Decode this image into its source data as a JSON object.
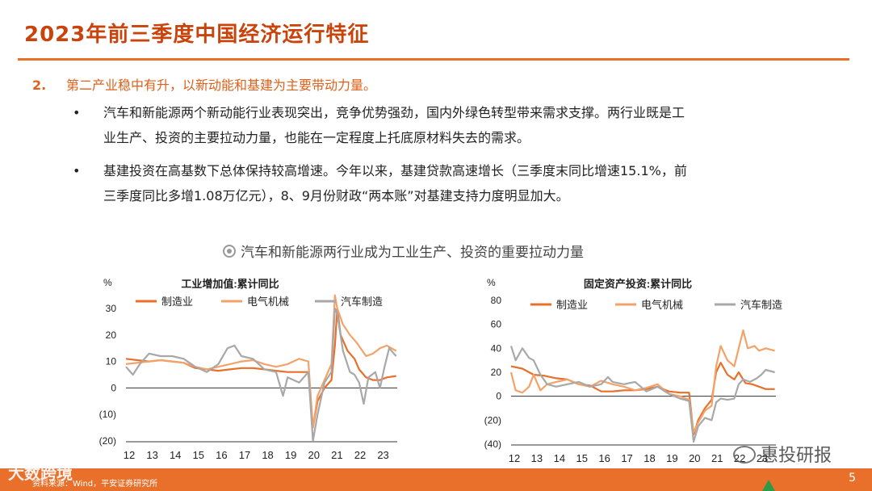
{
  "page": {
    "title": "2023年前三季度中国经济运行特征",
    "point_num": "2.",
    "point_text": "第二产业稳中有升，以新动能和基建为主要带动力量。",
    "bullets": [
      {
        "dot": "•",
        "line1": "汽车和新能源两个新动能行业表现突出，竞争优势强劲，国内外绿色转型带来需求支撑。两行业既是工",
        "line2": "业生产、投资的主要拉动力量，也能在一定程度上托底原材料失去的需求。"
      },
      {
        "dot": "•",
        "line1": "基建投资在高基数下总体保持较高增速。今年以来，基建贷款高速增长（三季度末同比增速15.1%，前",
        "line2": "三季度同比多增1.08万亿元），8、9月份财政“两本账”对基建支持力度明显加大。"
      }
    ],
    "figure_title": "汽车和新能源两行业成为工业生产、投资的重要拉动力量",
    "footer_source": "资料来源：Wind，平安证券研究所",
    "page_number": "5",
    "watermark_left": "大数跨境",
    "watermark_right": "惠投研报"
  },
  "colors": {
    "accent": "#e8702a",
    "title": "#c8440c",
    "series_mfg": "#e8702a",
    "series_elec": "#f2a36a",
    "series_auto": "#a8a8a8"
  },
  "chart_data": [
    {
      "type": "line",
      "title": "工业增加值:累计同比",
      "ylabel": "%",
      "ylim": [
        -20,
        30
      ],
      "yticks": [
        -20,
        -10,
        0,
        10,
        20,
        30
      ],
      "ytick_labels": [
        "(20)",
        "(10)",
        "0",
        "10",
        "20",
        "30"
      ],
      "xlim": [
        2012,
        2023.75
      ],
      "xticks": [
        2012,
        2013,
        2014,
        2015,
        2016,
        2017,
        2018,
        2019,
        2020,
        2021,
        2022,
        2023
      ],
      "xtick_labels": [
        "12",
        "13",
        "14",
        "15",
        "16",
        "17",
        "18",
        "19",
        "20",
        "21",
        "22",
        "23"
      ],
      "grid": false,
      "legend": "top",
      "series": [
        {
          "name": "制造业",
          "color": "#e8702a",
          "points": [
            [
              2012.0,
              11
            ],
            [
              2012.5,
              10.5
            ],
            [
              2013.0,
              10
            ],
            [
              2013.5,
              10.5
            ],
            [
              2014.0,
              10
            ],
            [
              2014.5,
              9.5
            ],
            [
              2015.0,
              7.5
            ],
            [
              2015.5,
              7
            ],
            [
              2016.0,
              6.5
            ],
            [
              2016.5,
              7
            ],
            [
              2017.0,
              7.5
            ],
            [
              2017.5,
              7.5
            ],
            [
              2018.0,
              7
            ],
            [
              2018.5,
              6.5
            ],
            [
              2019.0,
              6
            ],
            [
              2019.5,
              6
            ],
            [
              2019.9,
              6
            ],
            [
              2020.1,
              -15
            ],
            [
              2020.3,
              -5
            ],
            [
              2020.6,
              0
            ],
            [
              2020.9,
              3
            ],
            [
              2021.05,
              16
            ],
            [
              2021.15,
              30
            ],
            [
              2021.3,
              20
            ],
            [
              2021.6,
              14
            ],
            [
              2021.9,
              11
            ],
            [
              2022.1,
              7
            ],
            [
              2022.4,
              4
            ],
            [
              2022.7,
              3
            ],
            [
              2023.0,
              3
            ],
            [
              2023.3,
              4
            ],
            [
              2023.7,
              4.5
            ]
          ]
        },
        {
          "name": "电气机械",
          "color": "#f2a36a",
          "points": [
            [
              2012.0,
              9
            ],
            [
              2012.5,
              9.5
            ],
            [
              2013.0,
              10
            ],
            [
              2013.5,
              10.5
            ],
            [
              2014.0,
              10
            ],
            [
              2014.5,
              9.5
            ],
            [
              2015.0,
              8
            ],
            [
              2015.5,
              7
            ],
            [
              2016.0,
              8
            ],
            [
              2016.5,
              9
            ],
            [
              2017.0,
              10
            ],
            [
              2017.5,
              10.5
            ],
            [
              2018.0,
              9
            ],
            [
              2018.5,
              8
            ],
            [
              2019.0,
              9
            ],
            [
              2019.5,
              11
            ],
            [
              2019.9,
              10
            ],
            [
              2020.1,
              -15
            ],
            [
              2020.3,
              -3
            ],
            [
              2020.6,
              3
            ],
            [
              2020.9,
              9
            ],
            [
              2021.05,
              35
            ],
            [
              2021.15,
              30
            ],
            [
              2021.4,
              24
            ],
            [
              2021.7,
              20
            ],
            [
              2022.0,
              17
            ],
            [
              2022.4,
              12
            ],
            [
              2022.7,
              13
            ],
            [
              2023.0,
              15
            ],
            [
              2023.3,
              16
            ],
            [
              2023.7,
              14
            ]
          ]
        },
        {
          "name": "汽车制造",
          "color": "#a8a8a8",
          "points": [
            [
              2012.0,
              8
            ],
            [
              2012.3,
              5
            ],
            [
              2012.6,
              9
            ],
            [
              2013.0,
              13
            ],
            [
              2013.5,
              12
            ],
            [
              2014.0,
              12
            ],
            [
              2014.5,
              11
            ],
            [
              2015.0,
              8
            ],
            [
              2015.5,
              6
            ],
            [
              2016.0,
              9
            ],
            [
              2016.4,
              15
            ],
            [
              2016.7,
              16
            ],
            [
              2017.0,
              12
            ],
            [
              2017.5,
              11
            ],
            [
              2018.0,
              7
            ],
            [
              2018.5,
              6
            ],
            [
              2018.8,
              -3
            ],
            [
              2019.0,
              4
            ],
            [
              2019.5,
              2
            ],
            [
              2019.9,
              6
            ],
            [
              2020.1,
              -20
            ],
            [
              2020.3,
              -10
            ],
            [
              2020.6,
              2
            ],
            [
              2020.9,
              6
            ],
            [
              2021.05,
              30
            ],
            [
              2021.15,
              28
            ],
            [
              2021.4,
              14
            ],
            [
              2021.7,
              6
            ],
            [
              2021.9,
              5
            ],
            [
              2022.1,
              2
            ],
            [
              2022.3,
              -6
            ],
            [
              2022.5,
              4
            ],
            [
              2022.8,
              6
            ],
            [
              2023.0,
              0
            ],
            [
              2023.2,
              8
            ],
            [
              2023.4,
              15
            ],
            [
              2023.7,
              12
            ]
          ]
        }
      ]
    },
    {
      "type": "line",
      "title": "固定资产投资:累计同比",
      "ylabel": "%",
      "ylim": [
        -40,
        80
      ],
      "yticks": [
        -40,
        -20,
        0,
        20,
        40,
        60,
        80
      ],
      "ytick_labels": [
        "(40)",
        "(20)",
        "0",
        "20",
        "40",
        "60",
        "80"
      ],
      "xlim": [
        2012,
        2023.75
      ],
      "xticks": [
        2012,
        2013,
        2014,
        2015,
        2016,
        2017,
        2018,
        2019,
        2020,
        2021,
        2022,
        2023
      ],
      "xtick_labels": [
        "12",
        "13",
        "14",
        "15",
        "16",
        "17",
        "18",
        "19",
        "20",
        "21",
        "22",
        "23"
      ],
      "grid": false,
      "legend": "top",
      "series": [
        {
          "name": "制造业",
          "color": "#e8702a",
          "points": [
            [
              2012.0,
              25
            ],
            [
              2012.5,
              23
            ],
            [
              2013.0,
              18
            ],
            [
              2013.5,
              17
            ],
            [
              2014.0,
              15
            ],
            [
              2014.5,
              14
            ],
            [
              2015.0,
              10
            ],
            [
              2015.5,
              9
            ],
            [
              2016.0,
              4
            ],
            [
              2016.5,
              4
            ],
            [
              2017.0,
              5
            ],
            [
              2017.5,
              5
            ],
            [
              2018.0,
              6
            ],
            [
              2018.5,
              8
            ],
            [
              2019.0,
              4
            ],
            [
              2019.5,
              3
            ],
            [
              2019.9,
              3
            ],
            [
              2020.1,
              -32
            ],
            [
              2020.3,
              -20
            ],
            [
              2020.6,
              -10
            ],
            [
              2020.9,
              -3
            ],
            [
              2021.1,
              20
            ],
            [
              2021.3,
              28
            ],
            [
              2021.6,
              18
            ],
            [
              2021.9,
              14
            ],
            [
              2022.1,
              20
            ],
            [
              2022.4,
              11
            ],
            [
              2022.7,
              10
            ],
            [
              2023.0,
              8
            ],
            [
              2023.3,
              6
            ],
            [
              2023.7,
              6
            ]
          ]
        },
        {
          "name": "电气机械",
          "color": "#f2a36a",
          "points": [
            [
              2012.0,
              20
            ],
            [
              2012.2,
              5
            ],
            [
              2012.5,
              3
            ],
            [
              2012.8,
              8
            ],
            [
              2013.0,
              18
            ],
            [
              2013.3,
              5
            ],
            [
              2013.6,
              10
            ],
            [
              2014.0,
              12
            ],
            [
              2014.5,
              14
            ],
            [
              2015.0,
              10
            ],
            [
              2015.5,
              8
            ],
            [
              2016.0,
              13
            ],
            [
              2016.5,
              10
            ],
            [
              2017.0,
              8
            ],
            [
              2017.5,
              5
            ],
            [
              2018.0,
              7
            ],
            [
              2018.5,
              10
            ],
            [
              2019.0,
              2
            ],
            [
              2019.5,
              0
            ],
            [
              2019.9,
              -3
            ],
            [
              2020.1,
              -30
            ],
            [
              2020.3,
              -22
            ],
            [
              2020.6,
              -12
            ],
            [
              2020.9,
              -8
            ],
            [
              2021.1,
              25
            ],
            [
              2021.3,
              42
            ],
            [
              2021.6,
              30
            ],
            [
              2021.9,
              25
            ],
            [
              2022.1,
              40
            ],
            [
              2022.3,
              55
            ],
            [
              2022.5,
              40
            ],
            [
              2022.8,
              42
            ],
            [
              2023.0,
              38
            ],
            [
              2023.3,
              40
            ],
            [
              2023.7,
              38
            ]
          ]
        },
        {
          "name": "汽车制造",
          "color": "#a8a8a8",
          "points": [
            [
              2012.0,
              42
            ],
            [
              2012.2,
              30
            ],
            [
              2012.5,
              40
            ],
            [
              2012.8,
              32
            ],
            [
              2013.0,
              30
            ],
            [
              2013.3,
              18
            ],
            [
              2013.6,
              10
            ],
            [
              2014.0,
              8
            ],
            [
              2014.5,
              10
            ],
            [
              2015.0,
              12
            ],
            [
              2015.5,
              8
            ],
            [
              2016.0,
              10
            ],
            [
              2016.3,
              16
            ],
            [
              2016.5,
              12
            ],
            [
              2017.0,
              10
            ],
            [
              2017.5,
              12
            ],
            [
              2018.0,
              4
            ],
            [
              2018.5,
              8
            ],
            [
              2019.0,
              2
            ],
            [
              2019.5,
              -2
            ],
            [
              2019.9,
              -4
            ],
            [
              2020.1,
              -38
            ],
            [
              2020.3,
              -25
            ],
            [
              2020.6,
              -18
            ],
            [
              2020.9,
              -20
            ],
            [
              2021.1,
              -5
            ],
            [
              2021.3,
              -2
            ],
            [
              2021.6,
              -3
            ],
            [
              2021.9,
              -2
            ],
            [
              2022.1,
              10
            ],
            [
              2022.3,
              14
            ],
            [
              2022.6,
              12
            ],
            [
              2022.9,
              15
            ],
            [
              2023.1,
              18
            ],
            [
              2023.3,
              22
            ],
            [
              2023.7,
              20
            ]
          ]
        }
      ]
    }
  ]
}
